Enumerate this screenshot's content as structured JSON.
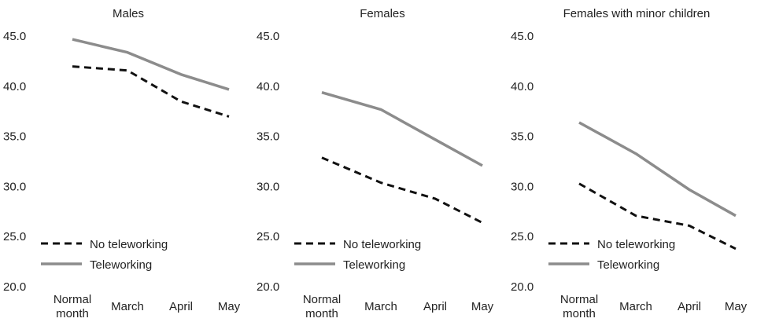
{
  "chart_data": [
    {
      "type": "line",
      "title": "Males",
      "categories": [
        "Normal month",
        "March",
        "April",
        "May"
      ],
      "ylim": [
        20,
        45
      ],
      "yticks": [
        "45.0",
        "40.0",
        "35.0",
        "30.0",
        "25.0",
        "20.0"
      ],
      "legend_position": "bottom-left",
      "series": [
        {
          "name": "No teleworking",
          "style": "dashed",
          "color": "#111111",
          "values": [
            41.9,
            41.5,
            38.4,
            36.9
          ]
        },
        {
          "name": "Teleworking",
          "style": "solid",
          "color": "#8c8c8c",
          "values": [
            44.6,
            43.3,
            41.1,
            39.6
          ]
        }
      ]
    },
    {
      "type": "line",
      "title": "Females",
      "categories": [
        "Normal month",
        "March",
        "April",
        "May"
      ],
      "ylim": [
        20,
        45
      ],
      "yticks": [
        "45.0",
        "40.0",
        "35.0",
        "30.0",
        "25.0",
        "20.0"
      ],
      "legend_position": "bottom-left",
      "series": [
        {
          "name": "No teleworking",
          "style": "dashed",
          "color": "#111111",
          "values": [
            32.8,
            30.3,
            28.7,
            26.3
          ]
        },
        {
          "name": "Teleworking",
          "style": "solid",
          "color": "#8c8c8c",
          "values": [
            39.3,
            37.6,
            34.6,
            32.0
          ]
        }
      ]
    },
    {
      "type": "line",
      "title": "Females with minor children",
      "categories": [
        "Normal month",
        "March",
        "April",
        "May"
      ],
      "ylim": [
        20,
        45
      ],
      "yticks": [
        "45.0",
        "40.0",
        "35.0",
        "30.0",
        "25.0",
        "20.0"
      ],
      "legend_position": "bottom-left",
      "series": [
        {
          "name": "No teleworking",
          "style": "dashed",
          "color": "#111111",
          "values": [
            30.2,
            27.0,
            26.0,
            23.7
          ]
        },
        {
          "name": "Teleworking",
          "style": "solid",
          "color": "#8c8c8c",
          "values": [
            36.3,
            33.2,
            29.6,
            27.0
          ]
        }
      ]
    }
  ]
}
